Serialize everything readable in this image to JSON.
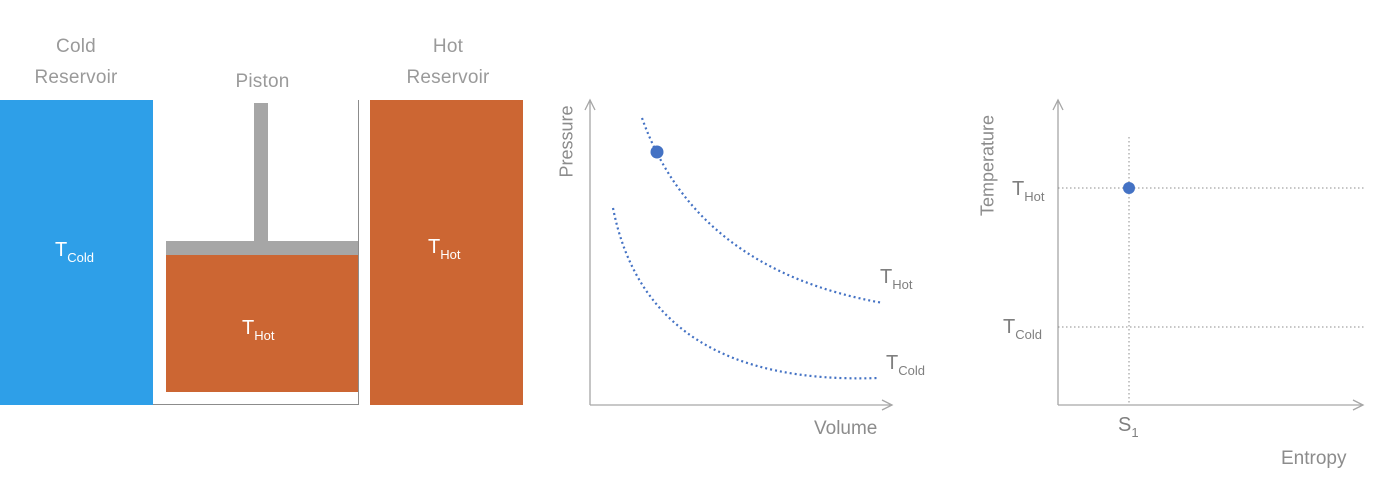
{
  "reservoirs": {
    "cold": {
      "title_line1": "Cold",
      "title_line2": "Reservoir",
      "temp_symbol": "T",
      "temp_sub": "Cold",
      "color": "#2e9fe8"
    },
    "hot": {
      "title_line1": "Hot",
      "title_line2": "Reservoir",
      "temp_symbol": "T",
      "temp_sub": "Hot",
      "color": "#cc6633"
    }
  },
  "piston": {
    "title": "Piston",
    "gas_temp_symbol": "T",
    "gas_temp_sub": "Hot",
    "gas_color": "#cc6633",
    "rod_color": "#a6a6a6"
  },
  "pv_diagram": {
    "ylabel": "Pressure",
    "xlabel": "Volume",
    "curve_hot_symbol": "T",
    "curve_hot_sub": "Hot",
    "curve_cold_symbol": "T",
    "curve_cold_sub": "Cold",
    "curve_color": "#4472c4",
    "state_point_color": "#4472c4"
  },
  "ts_diagram": {
    "ylabel": "Temperature",
    "xlabel": "Entropy",
    "tick_hot_symbol": "T",
    "tick_hot_sub": "Hot",
    "tick_cold_symbol": "T",
    "tick_cold_sub": "Cold",
    "tick_s_symbol": "S",
    "tick_s_sub": "1",
    "state_point_color": "#4472c4"
  }
}
